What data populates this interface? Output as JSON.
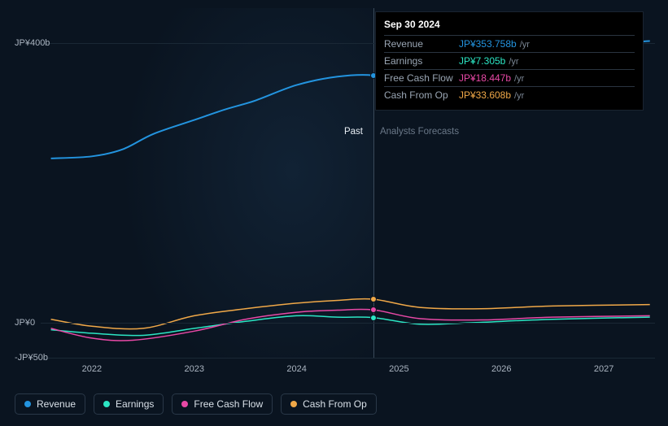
{
  "chart": {
    "background_color": "#0a1420",
    "grid_color": "#1a2835",
    "divider_color": "#3a4a5a",
    "label_color": "#aab4c0",
    "past_label": "Past",
    "forecast_label": "Analysts Forecasts",
    "past_label_color": "#e8eef4",
    "forecast_label_color": "#6a7888",
    "y_axis": {
      "min": -50,
      "max": 450,
      "ticks": [
        {
          "value": 400,
          "label": "JP¥400b"
        },
        {
          "value": 0,
          "label": "JP¥0"
        },
        {
          "value": -50,
          "label": "-JP¥50b"
        }
      ]
    },
    "x_axis": {
      "min": 2021.5,
      "max": 2027.5,
      "ticks": [
        {
          "value": 2022,
          "label": "2022"
        },
        {
          "value": 2023,
          "label": "2023"
        },
        {
          "value": 2024,
          "label": "2024"
        },
        {
          "value": 2025,
          "label": "2025"
        },
        {
          "value": 2026,
          "label": "2026"
        },
        {
          "value": 2027,
          "label": "2027"
        }
      ]
    },
    "divider_x": 2024.75,
    "series": [
      {
        "id": "revenue",
        "label": "Revenue",
        "color": "#2394df",
        "line_width": 2,
        "data": [
          [
            2021.6,
            235
          ],
          [
            2022.0,
            238
          ],
          [
            2022.3,
            248
          ],
          [
            2022.6,
            270
          ],
          [
            2023.0,
            290
          ],
          [
            2023.3,
            305
          ],
          [
            2023.6,
            318
          ],
          [
            2024.0,
            340
          ],
          [
            2024.4,
            352
          ],
          [
            2024.75,
            353.758
          ],
          [
            2025.0,
            343
          ],
          [
            2025.3,
            348
          ],
          [
            2025.7,
            360
          ],
          [
            2026.2,
            378
          ],
          [
            2026.7,
            390
          ],
          [
            2027.2,
            400
          ],
          [
            2027.45,
            403
          ]
        ]
      },
      {
        "id": "earnings",
        "label": "Earnings",
        "color": "#2ce6c4",
        "line_width": 1.5,
        "data": [
          [
            2021.6,
            -10
          ],
          [
            2022.0,
            -15
          ],
          [
            2022.5,
            -18
          ],
          [
            2023.0,
            -8
          ],
          [
            2023.5,
            2
          ],
          [
            2024.0,
            10
          ],
          [
            2024.4,
            8
          ],
          [
            2024.75,
            7.305
          ],
          [
            2025.2,
            -2
          ],
          [
            2025.7,
            0
          ],
          [
            2026.5,
            5
          ],
          [
            2027.45,
            8
          ]
        ]
      },
      {
        "id": "fcf",
        "label": "Free Cash Flow",
        "color": "#e849a6",
        "line_width": 1.5,
        "data": [
          [
            2021.6,
            -8
          ],
          [
            2022.0,
            -22
          ],
          [
            2022.4,
            -25
          ],
          [
            2023.0,
            -12
          ],
          [
            2023.5,
            5
          ],
          [
            2024.0,
            15
          ],
          [
            2024.4,
            18
          ],
          [
            2024.75,
            18.447
          ],
          [
            2025.2,
            6
          ],
          [
            2025.8,
            4
          ],
          [
            2026.5,
            8
          ],
          [
            2027.45,
            10
          ]
        ]
      },
      {
        "id": "cfo",
        "label": "Cash From Op",
        "color": "#f0a848",
        "line_width": 1.5,
        "data": [
          [
            2021.6,
            5
          ],
          [
            2022.0,
            -5
          ],
          [
            2022.5,
            -8
          ],
          [
            2023.0,
            10
          ],
          [
            2023.5,
            20
          ],
          [
            2024.0,
            28
          ],
          [
            2024.4,
            32
          ],
          [
            2024.75,
            33.608
          ],
          [
            2025.2,
            22
          ],
          [
            2025.8,
            20
          ],
          [
            2026.5,
            24
          ],
          [
            2027.45,
            26
          ]
        ]
      }
    ],
    "markers": [
      {
        "series": "revenue",
        "x": 2024.75,
        "y": 353.758,
        "fill": "#2394df"
      },
      {
        "series": "cfo",
        "x": 2024.75,
        "y": 33.608,
        "fill": "#f0a848"
      },
      {
        "series": "fcf",
        "x": 2024.75,
        "y": 18.447,
        "fill": "#e849a6"
      },
      {
        "series": "earnings",
        "x": 2024.75,
        "y": 7.305,
        "fill": "#2ce6c4"
      }
    ]
  },
  "tooltip": {
    "date": "Sep 30 2024",
    "unit": "/yr",
    "rows": [
      {
        "label": "Revenue",
        "value": "JP¥353.758b",
        "color": "#2394df"
      },
      {
        "label": "Earnings",
        "value": "JP¥7.305b",
        "color": "#2ce6c4"
      },
      {
        "label": "Free Cash Flow",
        "value": "JP¥18.447b",
        "color": "#e849a6"
      },
      {
        "label": "Cash From Op",
        "value": "JP¥33.608b",
        "color": "#f0a848"
      }
    ]
  },
  "legend": [
    {
      "label": "Revenue",
      "color": "#2394df"
    },
    {
      "label": "Earnings",
      "color": "#2ce6c4"
    },
    {
      "label": "Free Cash Flow",
      "color": "#e849a6"
    },
    {
      "label": "Cash From Op",
      "color": "#f0a848"
    }
  ]
}
